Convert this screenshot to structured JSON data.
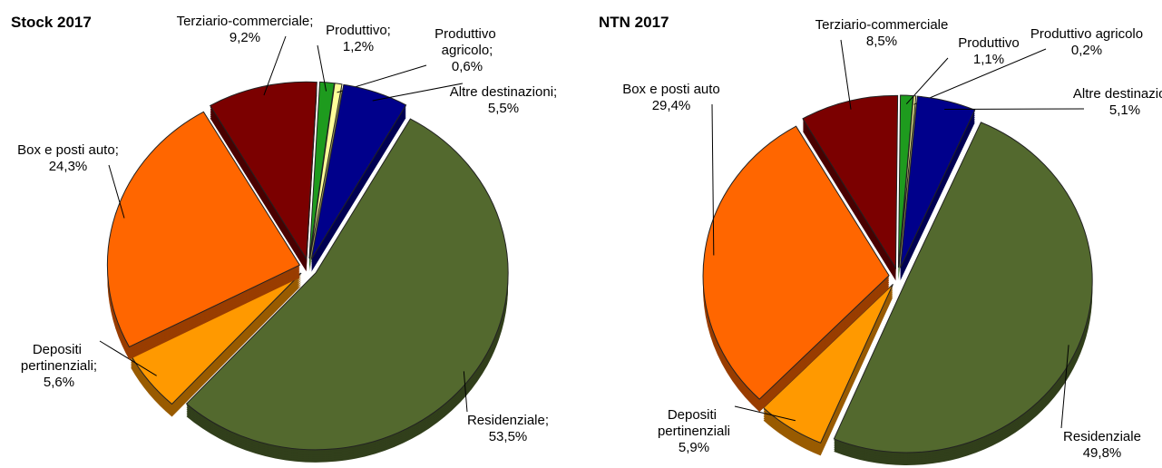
{
  "chart_data": [
    {
      "type": "pie",
      "title": "Stock 2017",
      "categories": [
        "Terziario-commerciale;",
        "Produttivo;",
        "Produttivo agricolo;",
        "Altre destinazioni;",
        "Residenziale;",
        "Depositi pertinenziali;",
        "Box e posti auto;"
      ],
      "values": [
        9.2,
        1.2,
        0.6,
        5.5,
        53.5,
        5.6,
        24.3
      ],
      "value_labels": [
        "9,2%",
        "1,2%",
        "0,6%",
        "5,5%",
        "53,5%",
        "5,6%",
        "24,3%"
      ],
      "colors": [
        "#7b0000",
        "#1e9b1e",
        "#ffff99",
        "#00008b",
        "#53692e",
        "#ff9900",
        "#ff6600"
      ]
    },
    {
      "type": "pie",
      "title": "NTN 2017",
      "categories": [
        "Terziario-commerciale",
        "Produttivo",
        "Produttivo agricolo",
        "Altre destinazioni",
        "Residenziale",
        "Depositi pertinenziali",
        "Box e posti auto"
      ],
      "values": [
        8.5,
        1.1,
        0.2,
        5.1,
        49.8,
        5.9,
        29.4
      ],
      "value_labels": [
        "8,5%",
        "1,1%",
        "0,2%",
        "5,1%",
        "49,8%",
        "5,9%",
        "29,4%"
      ],
      "colors": [
        "#7b0000",
        "#1e9b1e",
        "#ffff99",
        "#00008b",
        "#53692e",
        "#ff9900",
        "#ff6600"
      ]
    }
  ]
}
